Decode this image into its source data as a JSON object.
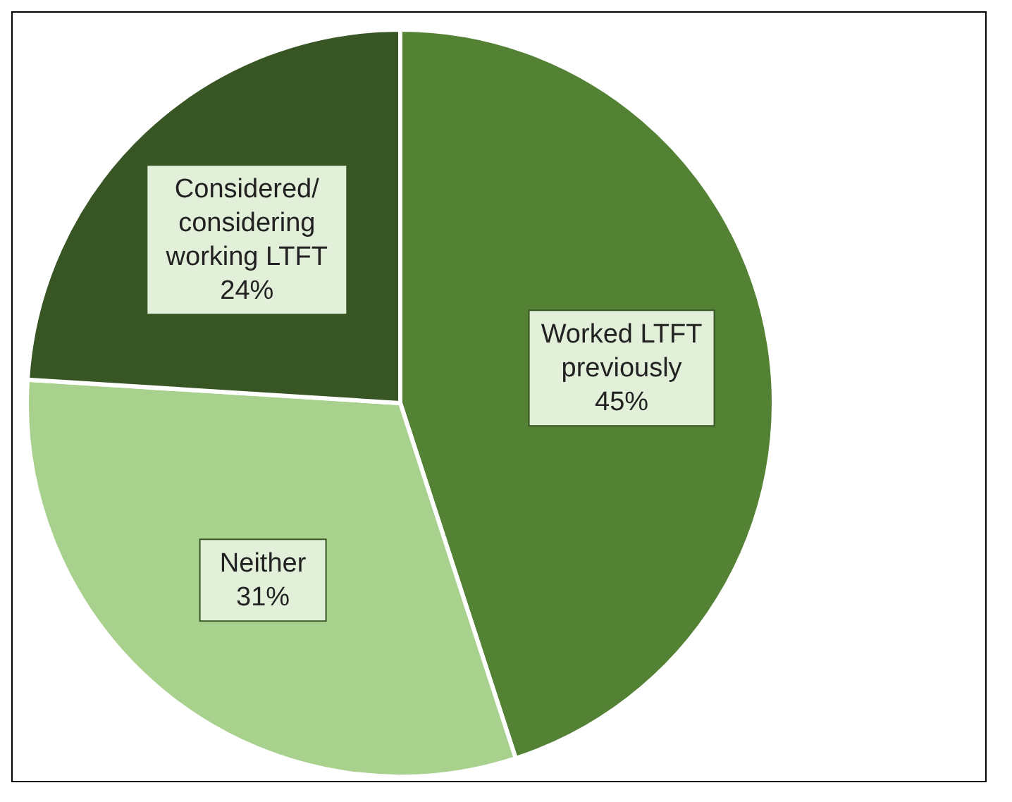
{
  "chart_data": {
    "type": "pie",
    "categories": [
      "Worked LTFT previously",
      "Neither",
      "Considered/ considering working LTFT"
    ],
    "values": [
      45,
      31,
      24
    ],
    "colors": [
      "#548235",
      "#a9d18e",
      "#375623"
    ],
    "value_labels": [
      "45%",
      "31%",
      "24%"
    ]
  }
}
